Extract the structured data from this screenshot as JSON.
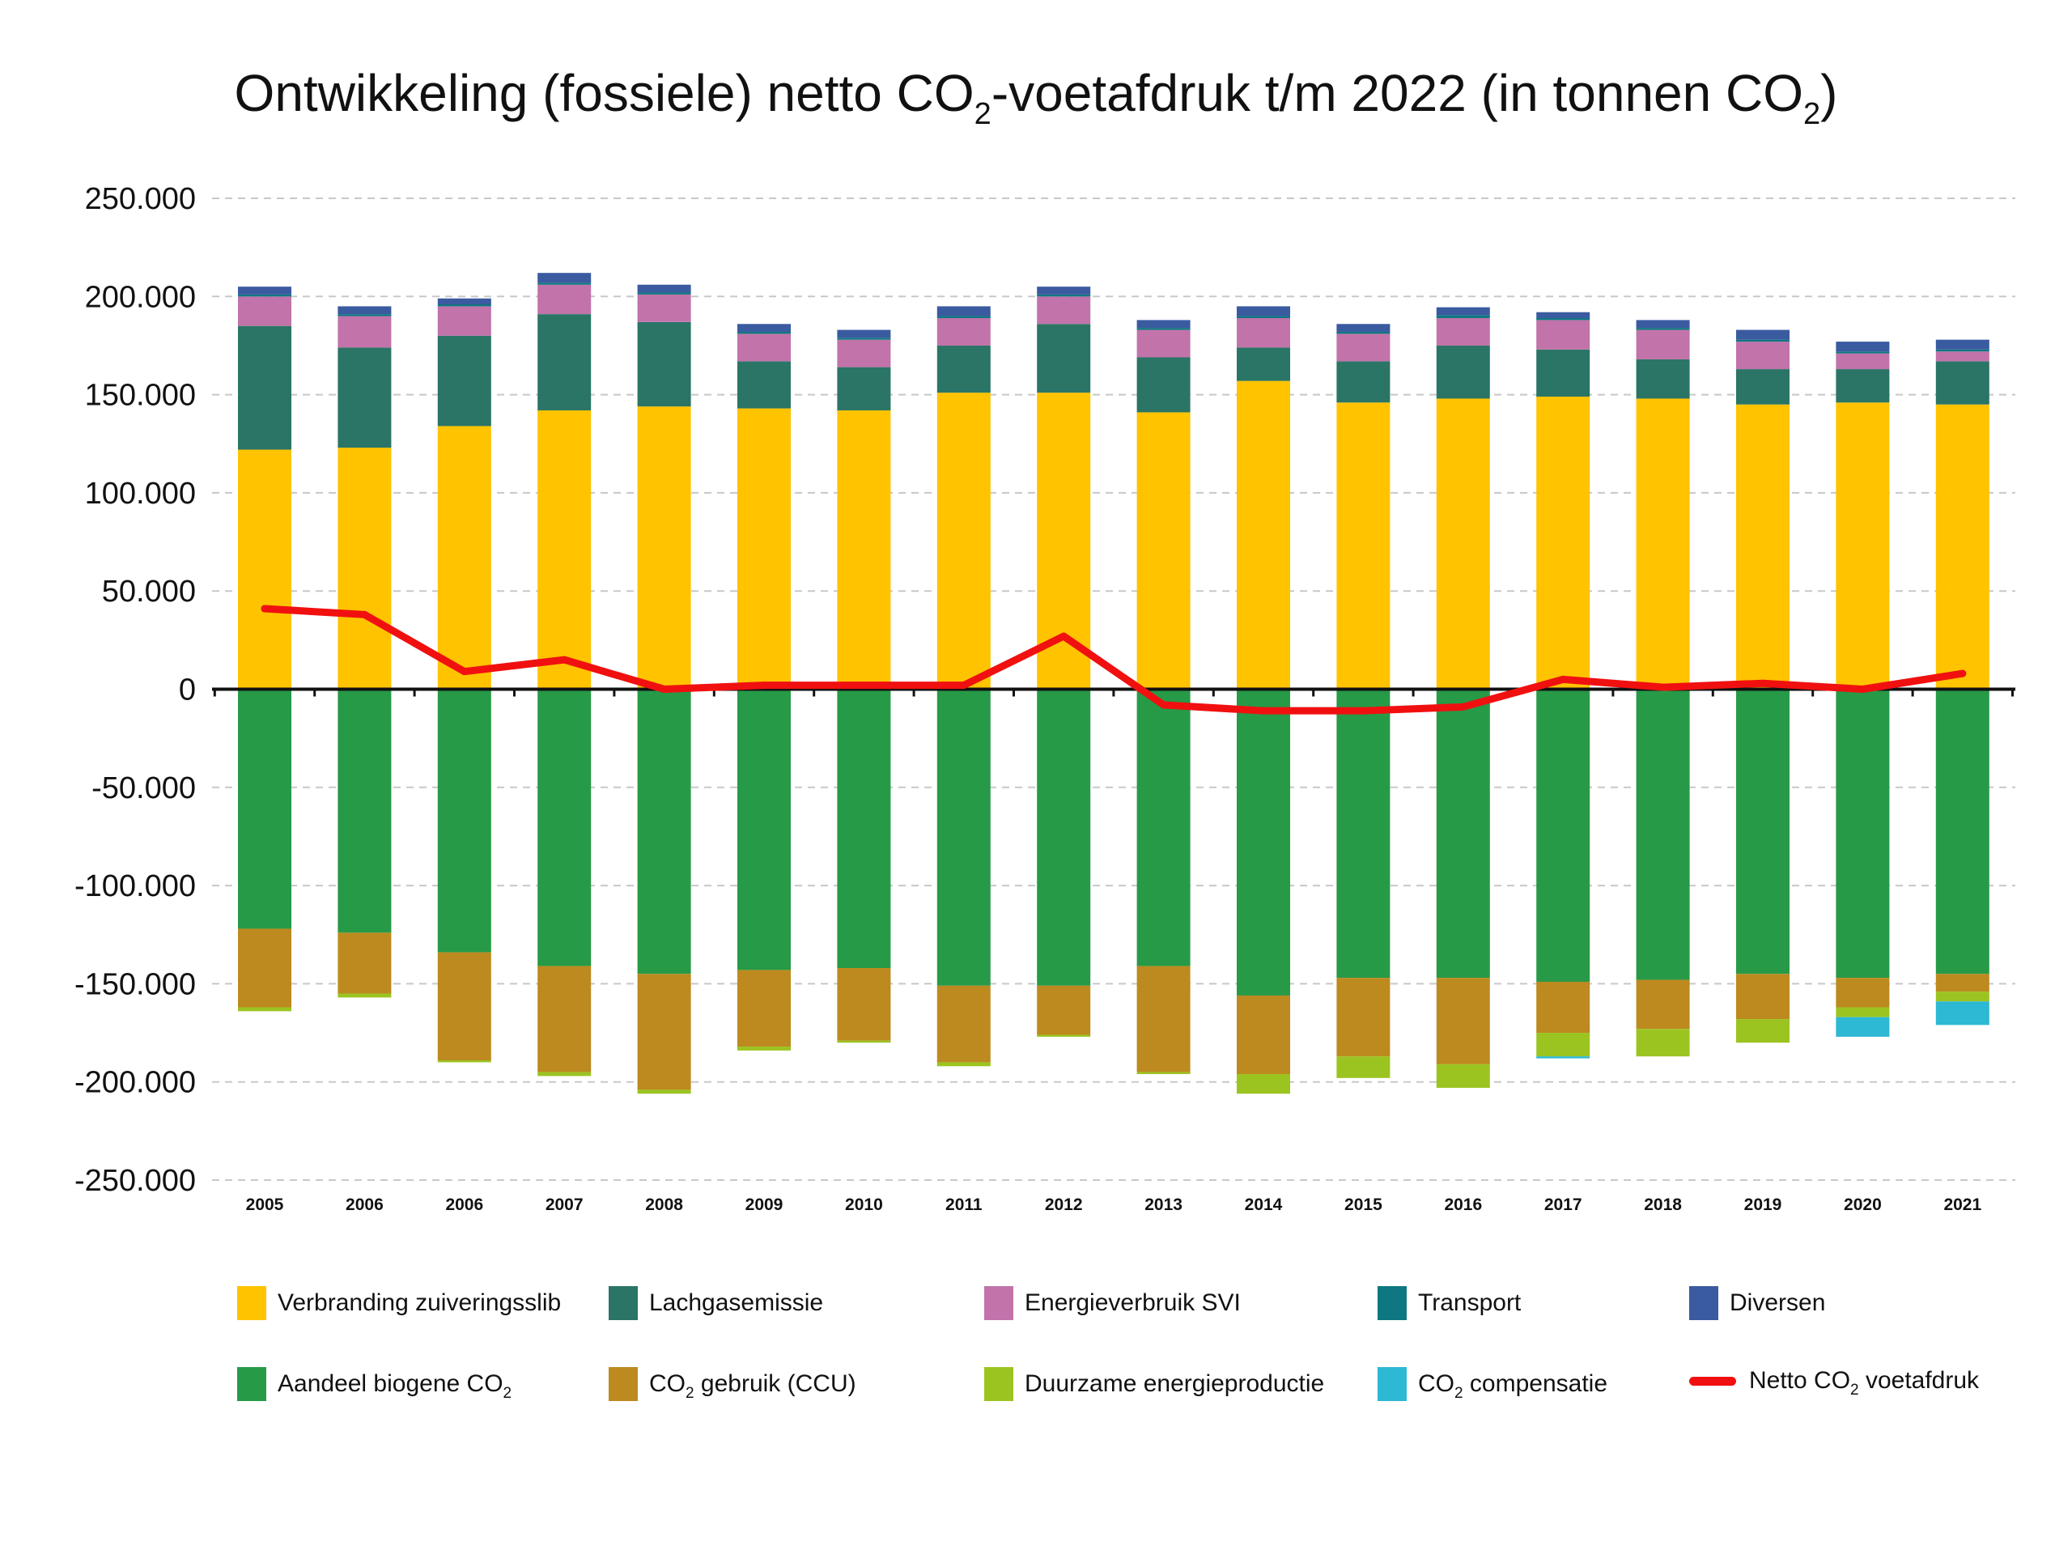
{
  "title": {
    "part1": "Ontwikkeling (fossiele) netto CO",
    "sub1": "2",
    "part2": "-voetafdruk t/m 2022 (in tonnen CO",
    "sub2": "2",
    "part3": ")"
  },
  "chart_data": {
    "type": "bar",
    "stacked": true,
    "categories": [
      "2005",
      "2006",
      "2006",
      "2007",
      "2008",
      "2009",
      "2010",
      "2011",
      "2012",
      "2013",
      "2014",
      "2015",
      "2016",
      "2017",
      "2018",
      "2019",
      "2020",
      "2021"
    ],
    "ylim": [
      -250000,
      250000
    ],
    "yticks": [
      250000,
      200000,
      150000,
      100000,
      50000,
      0,
      -50000,
      -100000,
      -150000,
      -200000,
      -250000
    ],
    "ytick_labels": [
      "250.000",
      "200.000",
      "150.000",
      "100.000",
      "50.000",
      "0",
      "-50.000",
      "-100.000",
      "-150.000",
      "-200.000",
      "-250.000"
    ],
    "grid": true,
    "legend_position": "bottom",
    "series": [
      {
        "key": "verbranding",
        "name_parts": [
          "Verbranding zuiveringsslib"
        ],
        "color": "#FFC300",
        "values": [
          122000,
          123000,
          134000,
          142000,
          144000,
          143000,
          142000,
          151000,
          151000,
          141000,
          157000,
          146000,
          148000,
          149000,
          148000,
          145000,
          146000,
          145000
        ]
      },
      {
        "key": "lachgas",
        "name_parts": [
          "Lachgasemissie"
        ],
        "color": "#2A7565",
        "values": [
          63000,
          51000,
          46000,
          49000,
          43000,
          24000,
          22000,
          24000,
          35000,
          28000,
          17000,
          21000,
          27000,
          24000,
          20000,
          18000,
          17000,
          22000
        ]
      },
      {
        "key": "svi",
        "name_parts": [
          "Energieverbruik SVI"
        ],
        "color": "#C173AA",
        "values": [
          15000,
          16000,
          15000,
          15000,
          14000,
          14000,
          14000,
          14000,
          14000,
          14000,
          15000,
          14000,
          14000,
          15000,
          15000,
          14000,
          8000,
          5000
        ]
      },
      {
        "key": "transport",
        "name_parts": [
          "Transport"
        ],
        "color": "#0E7781",
        "values": [
          1000,
          1000,
          1000,
          1000,
          1000,
          1000,
          1000,
          1000,
          1000,
          1000,
          1000,
          1000,
          1500,
          1000,
          1000,
          1000,
          1000,
          1000
        ]
      },
      {
        "key": "diversen",
        "name_parts": [
          "Diversen"
        ],
        "color": "#3A5BA0",
        "values": [
          4000,
          4000,
          3000,
          5000,
          4000,
          4000,
          4000,
          5000,
          4000,
          4000,
          5000,
          4000,
          4000,
          3000,
          4000,
          5000,
          5000,
          5000
        ]
      },
      {
        "key": "biogeen",
        "name_parts": [
          "Aandeel biogene CO",
          "2"
        ],
        "color": "#279A47",
        "values": [
          -122000,
          -124000,
          -134000,
          -141000,
          -145000,
          -143000,
          -142000,
          -151000,
          -151000,
          -141000,
          -156000,
          -147000,
          -147000,
          -149000,
          -148000,
          -145000,
          -147000,
          -145000
        ]
      },
      {
        "key": "ccu",
        "name_parts": [
          "CO",
          "2",
          " gebruik (CCU)"
        ],
        "color": "#BC8A1F",
        "values": [
          -40000,
          -31000,
          -55000,
          -54000,
          -59000,
          -39000,
          -37000,
          -39000,
          -25000,
          -54000,
          -40000,
          -40000,
          -44000,
          -26000,
          -25000,
          -23000,
          -15000,
          -9000
        ]
      },
      {
        "key": "duurzaam",
        "name_parts": [
          "Duurzame energieproductie"
        ],
        "color": "#9BC421",
        "values": [
          -2000,
          -2000,
          -1000,
          -2000,
          -2000,
          -2000,
          -1000,
          -2000,
          -1000,
          -1000,
          -10000,
          -11000,
          -12000,
          -12000,
          -14000,
          -12000,
          -5000,
          -5000
        ]
      },
      {
        "key": "compensatie",
        "name_parts": [
          "CO",
          "2",
          " compensatie"
        ],
        "color": "#2DB8D3",
        "values": [
          0,
          0,
          0,
          0,
          0,
          0,
          0,
          0,
          0,
          0,
          0,
          0,
          0,
          -1000,
          0,
          0,
          -10000,
          -12000
        ]
      }
    ],
    "line": {
      "key": "netto",
      "name_parts": [
        "Netto CO",
        "2",
        " voetafdruk"
      ],
      "color": "#F01010",
      "values": [
        41000,
        38000,
        9000,
        15000,
        0,
        2000,
        2000,
        2000,
        27000,
        -8000,
        -11000,
        -11000,
        -9000,
        5000,
        1000,
        3000,
        0,
        8000
      ]
    }
  }
}
